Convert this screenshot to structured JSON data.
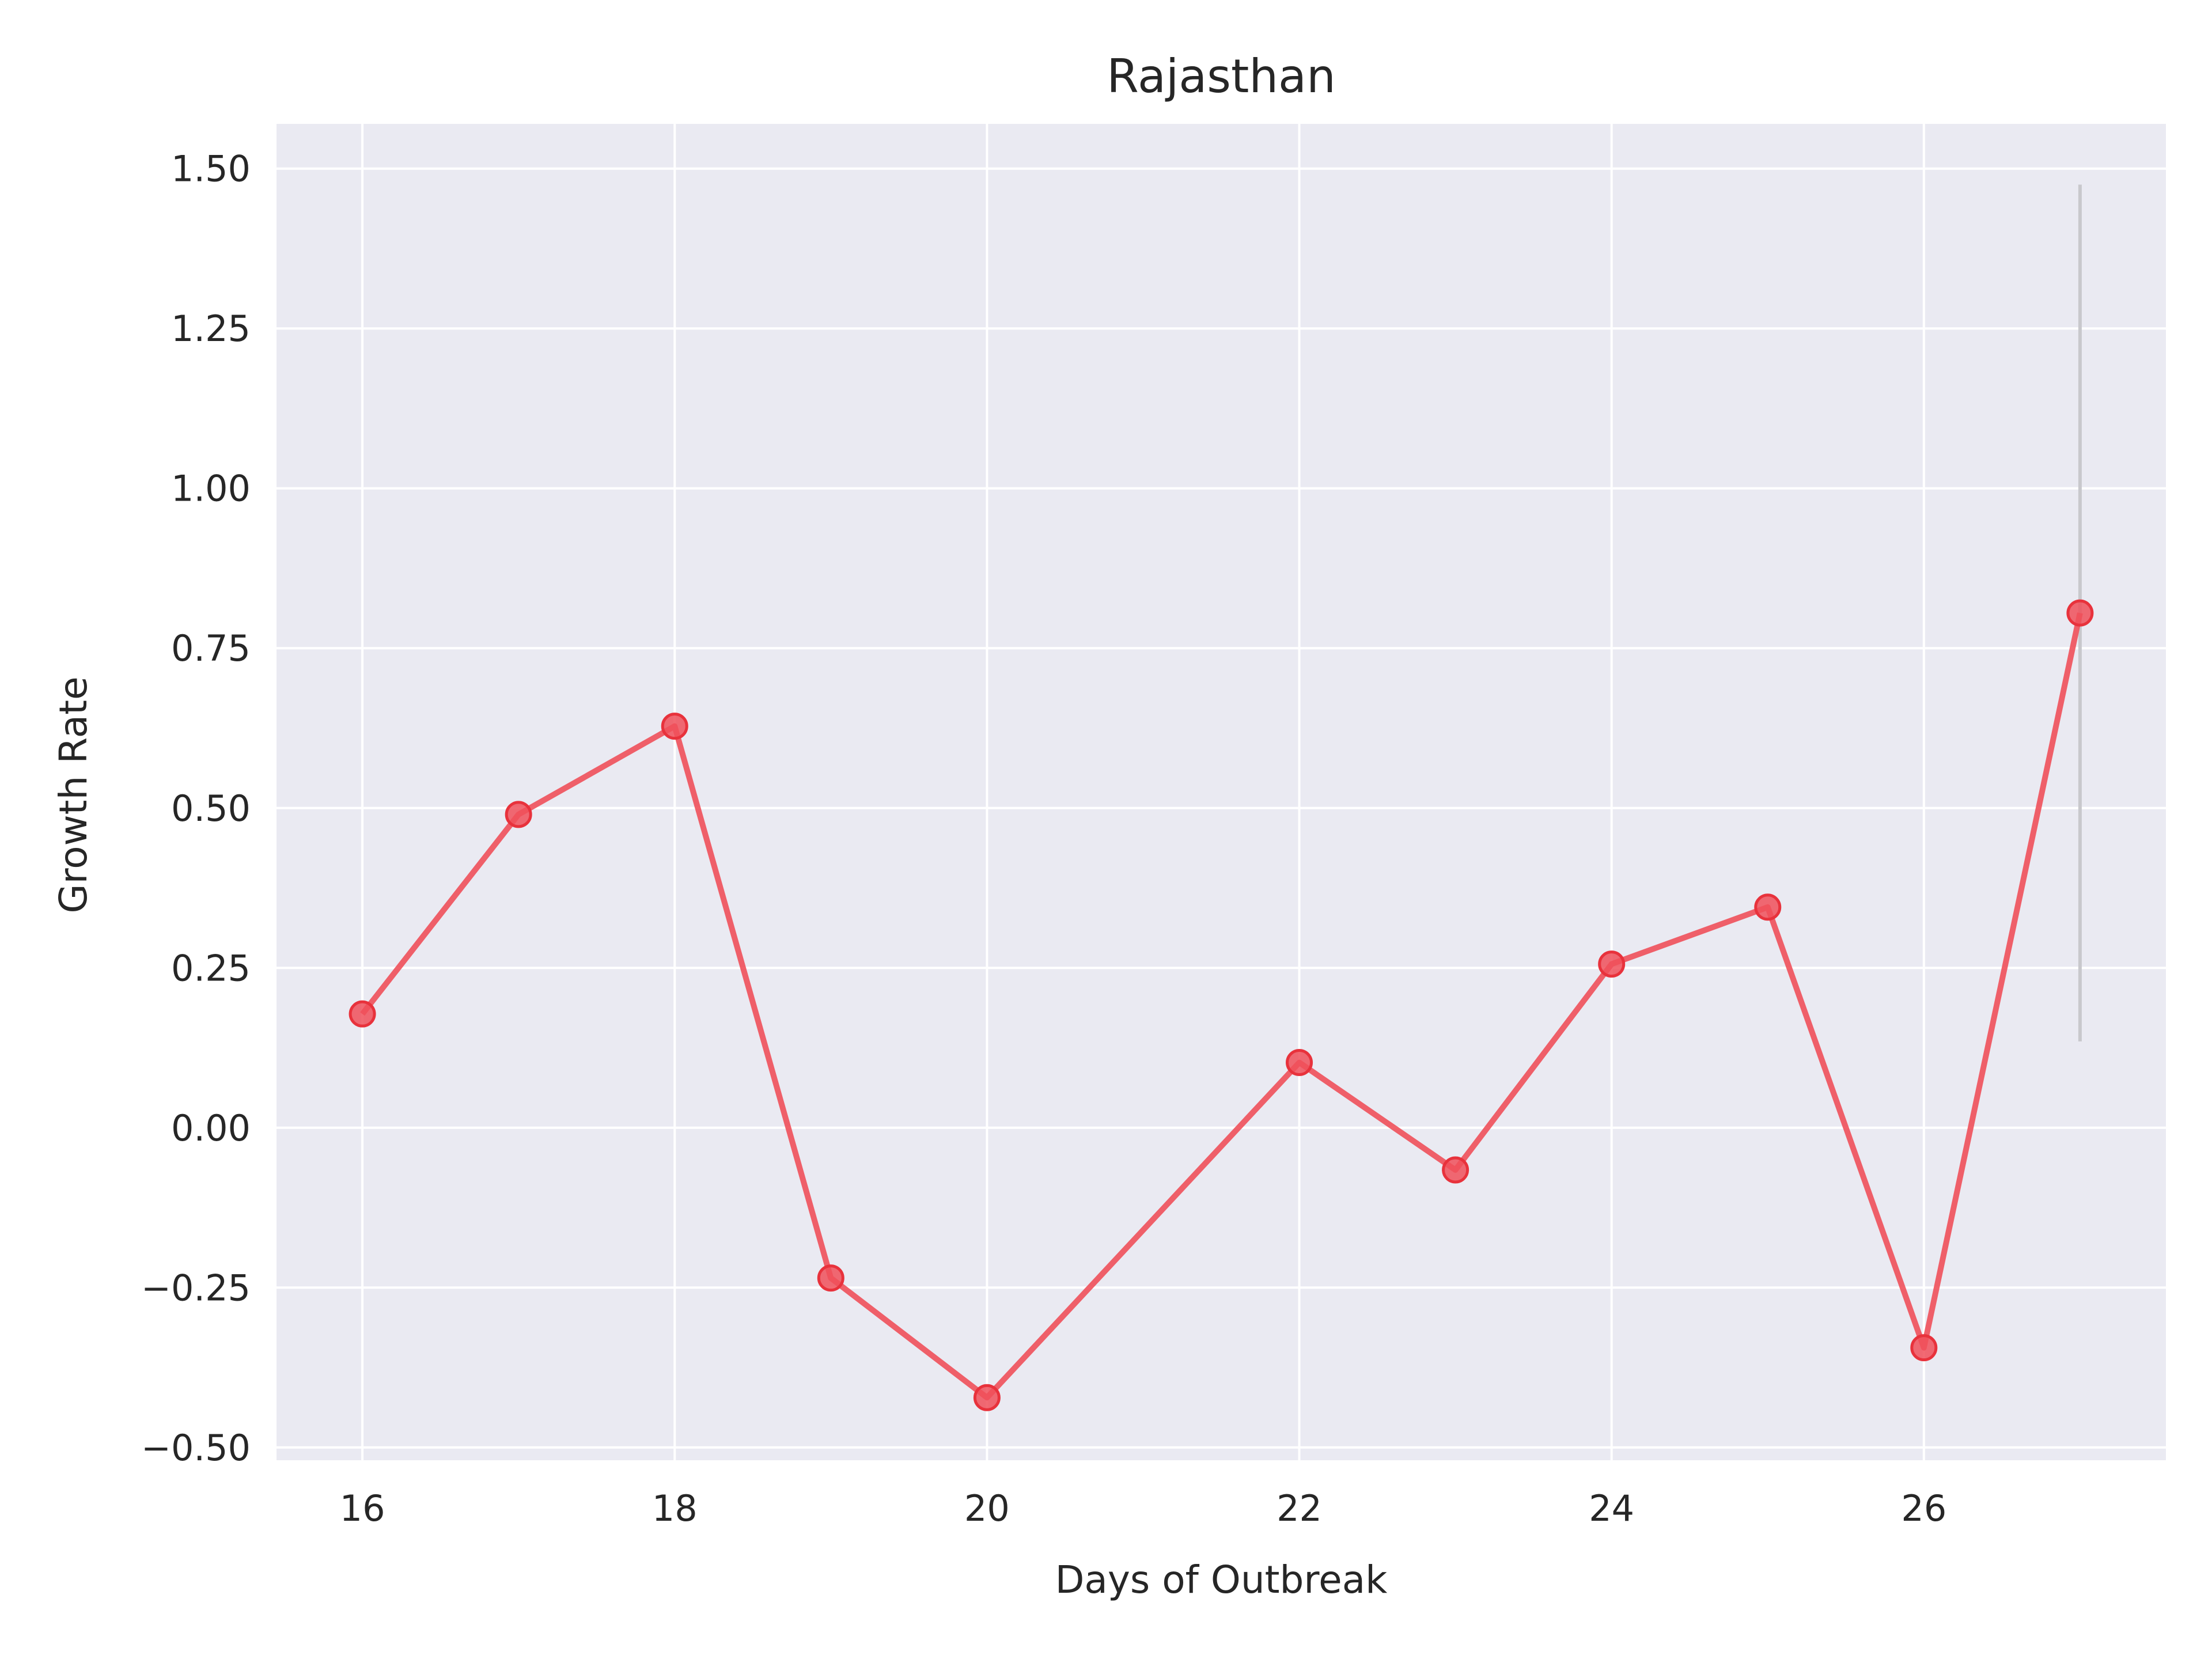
{
  "chart_data": {
    "type": "line",
    "title": "Rajasthan",
    "xlabel": "Days of Outbreak",
    "ylabel": "Growth Rate",
    "xlim": [
      15.45,
      27.55
    ],
    "ylim": [
      -0.52,
      1.57
    ],
    "xticks": [
      16,
      18,
      20,
      22,
      24,
      26
    ],
    "xtick_labels": [
      "16",
      "18",
      "20",
      "22",
      "24",
      "26"
    ],
    "yticks": [
      -0.5,
      -0.25,
      0.0,
      0.25,
      0.5,
      0.75,
      1.0,
      1.25,
      1.5
    ],
    "ytick_labels": [
      "−0.50",
      "−0.25",
      "0.00",
      "0.25",
      "0.50",
      "0.75",
      "1.00",
      "1.25",
      "1.50"
    ],
    "grid": true,
    "series": [
      {
        "x": [
          16,
          17,
          18,
          19,
          20,
          22,
          23,
          24,
          25,
          26,
          27
        ],
        "values": [
          0.178,
          0.49,
          0.628,
          -0.235,
          -0.422,
          0.102,
          -0.066,
          0.256,
          0.345,
          -0.344,
          0.805
        ],
        "color": "#f0505a",
        "marker": "circle"
      }
    ],
    "annotations": [
      {
        "type": "vertical_range",
        "x": 27,
        "y_min": 0.135,
        "y_max": 1.475,
        "color": "#c8c8cc"
      }
    ],
    "colors": {
      "background": "#eaeaf2",
      "grid": "#ffffff",
      "line": "#f0505a"
    }
  }
}
